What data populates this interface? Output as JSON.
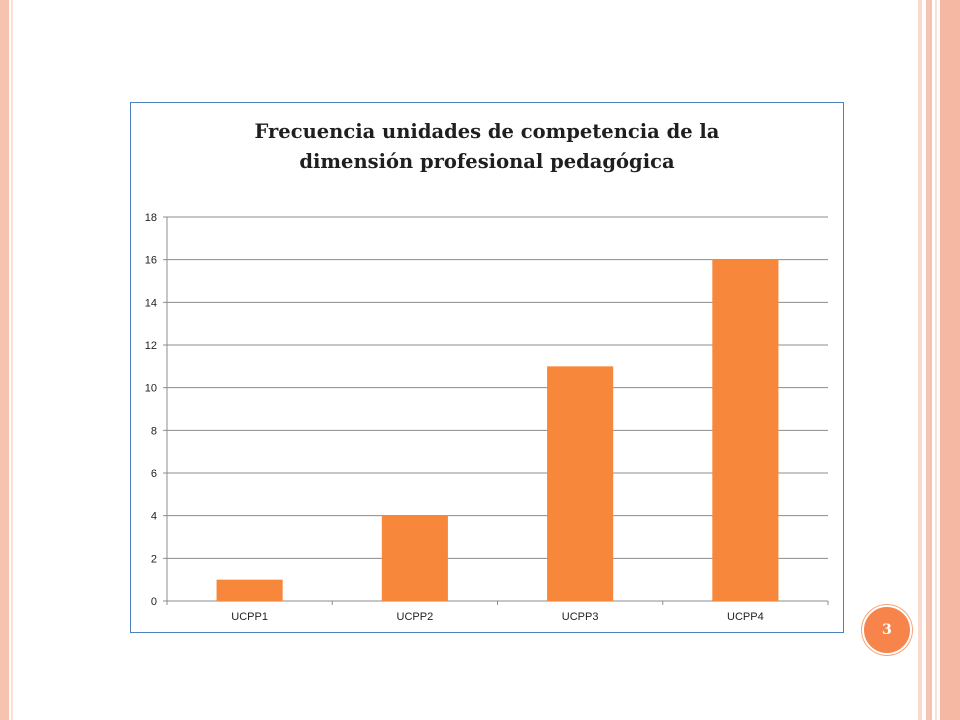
{
  "slide": {
    "page_number": "3",
    "colors": {
      "stripe_dark": "#f6c3b0",
      "stripe_light": "#fbe0d6",
      "badge": "#f7844a",
      "frame_border": "#4f81bd"
    }
  },
  "chart_data": {
    "type": "bar",
    "title_lines": [
      "Frecuencia unidades de competencia de la",
      "dimensión profesional pedagógica"
    ],
    "categories": [
      "UCPP1",
      "UCPP2",
      "UCPP3",
      "UCPP4"
    ],
    "series": [
      {
        "values": [
          1,
          4,
          11,
          16
        ],
        "color": "#f7873a"
      }
    ],
    "ylim": [
      0,
      18
    ],
    "yticks": [
      0,
      2,
      4,
      6,
      8,
      10,
      12,
      14,
      16,
      18
    ],
    "xlabel": "",
    "ylabel": "",
    "grid": true,
    "legend": "none"
  }
}
